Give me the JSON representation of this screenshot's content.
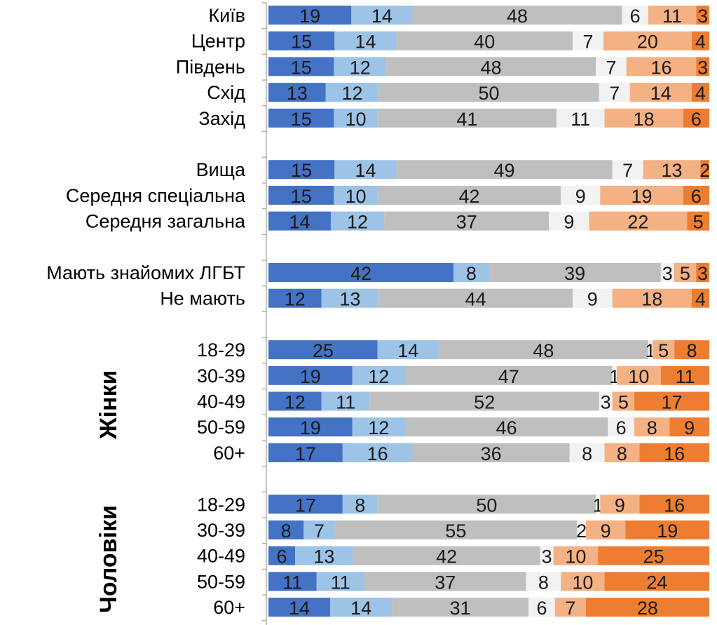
{
  "chart_data": {
    "type": "bar",
    "orientation": "horizontal",
    "stacked": true,
    "legend": "none",
    "xlim": [
      0,
      100
    ],
    "colors": [
      "#4472c4",
      "#9dc3e6",
      "#bfbfbf",
      "#f2f2f2",
      "#f4b183",
      "#ed7d31"
    ],
    "groups": [
      {
        "label": "",
        "rows": [
          {
            "label": "Київ",
            "values": [
              19,
              14,
              48,
              6,
              11,
              3
            ]
          },
          {
            "label": "Центр",
            "values": [
              15,
              14,
              40,
              7,
              20,
              4
            ]
          },
          {
            "label": "Південь",
            "values": [
              15,
              12,
              48,
              7,
              16,
              3
            ]
          },
          {
            "label": "Схід",
            "values": [
              13,
              12,
              50,
              7,
              14,
              4
            ]
          },
          {
            "label": "Захід",
            "values": [
              15,
              10,
              41,
              11,
              18,
              6
            ]
          }
        ]
      },
      {
        "label": "",
        "rows": [
          {
            "label": "Вища",
            "values": [
              15,
              14,
              49,
              7,
              13,
              2
            ]
          },
          {
            "label": "Середня спеціальна",
            "values": [
              15,
              10,
              42,
              9,
              19,
              6
            ]
          },
          {
            "label": "Середня загальна",
            "values": [
              14,
              12,
              37,
              9,
              22,
              5
            ]
          }
        ]
      },
      {
        "label": "",
        "rows": [
          {
            "label": "Мають знайомих ЛГБТ",
            "values": [
              42,
              8,
              39,
              3,
              5,
              3
            ]
          },
          {
            "label": "Не мають",
            "values": [
              12,
              13,
              44,
              9,
              18,
              4
            ]
          }
        ]
      },
      {
        "label": "Жінки",
        "rows": [
          {
            "label": "18-29",
            "values": [
              25,
              14,
              48,
              1,
              5,
              8
            ]
          },
          {
            "label": "30-39",
            "values": [
              19,
              12,
              47,
              1,
              10,
              11
            ]
          },
          {
            "label": "40-49",
            "values": [
              12,
              11,
              52,
              3,
              5,
              17
            ]
          },
          {
            "label": "50-59",
            "values": [
              19,
              12,
              46,
              6,
              8,
              9
            ]
          },
          {
            "label": "60+",
            "values": [
              17,
              16,
              36,
              8,
              8,
              16
            ]
          }
        ]
      },
      {
        "label": "Чоловіки",
        "rows": [
          {
            "label": "18-29",
            "values": [
              17,
              8,
              50,
              1,
              9,
              16
            ]
          },
          {
            "label": "30-39",
            "values": [
              8,
              7,
              55,
              2,
              9,
              19
            ]
          },
          {
            "label": "40-49",
            "values": [
              6,
              13,
              42,
              3,
              10,
              25
            ]
          },
          {
            "label": "50-59",
            "values": [
              11,
              11,
              37,
              8,
              10,
              24
            ]
          },
          {
            "label": "60+",
            "values": [
              14,
              14,
              31,
              6,
              7,
              28
            ]
          }
        ]
      }
    ]
  }
}
